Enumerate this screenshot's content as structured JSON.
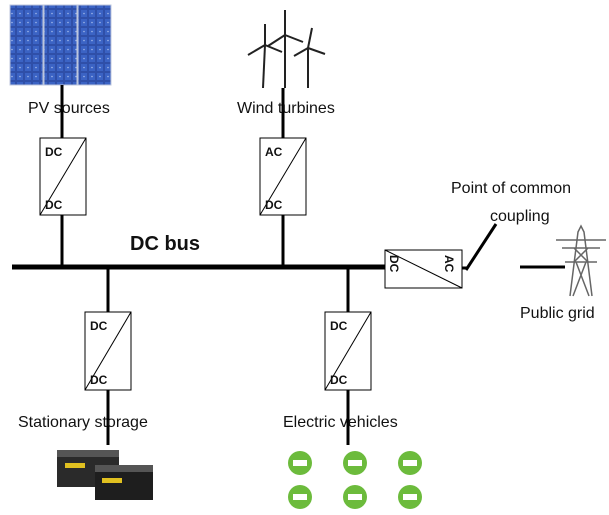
{
  "bus": {
    "label": "DC bus"
  },
  "nodes": [
    {
      "label": "PV sources",
      "converter": [
        "DC",
        "DC"
      ]
    },
    {
      "label": "Wind turbines",
      "converter": [
        "AC",
        "DC"
      ]
    },
    {
      "label": "Stationary storage",
      "converter": [
        "DC",
        "DC"
      ]
    },
    {
      "label": "Electric vehicles",
      "converter": [
        "DC",
        "DC"
      ]
    }
  ],
  "grid_converter": [
    "DC",
    "AC"
  ],
  "pcc": {
    "label": [
      "Point of common",
      "coupling"
    ]
  },
  "grid": {
    "label": "Public grid"
  }
}
